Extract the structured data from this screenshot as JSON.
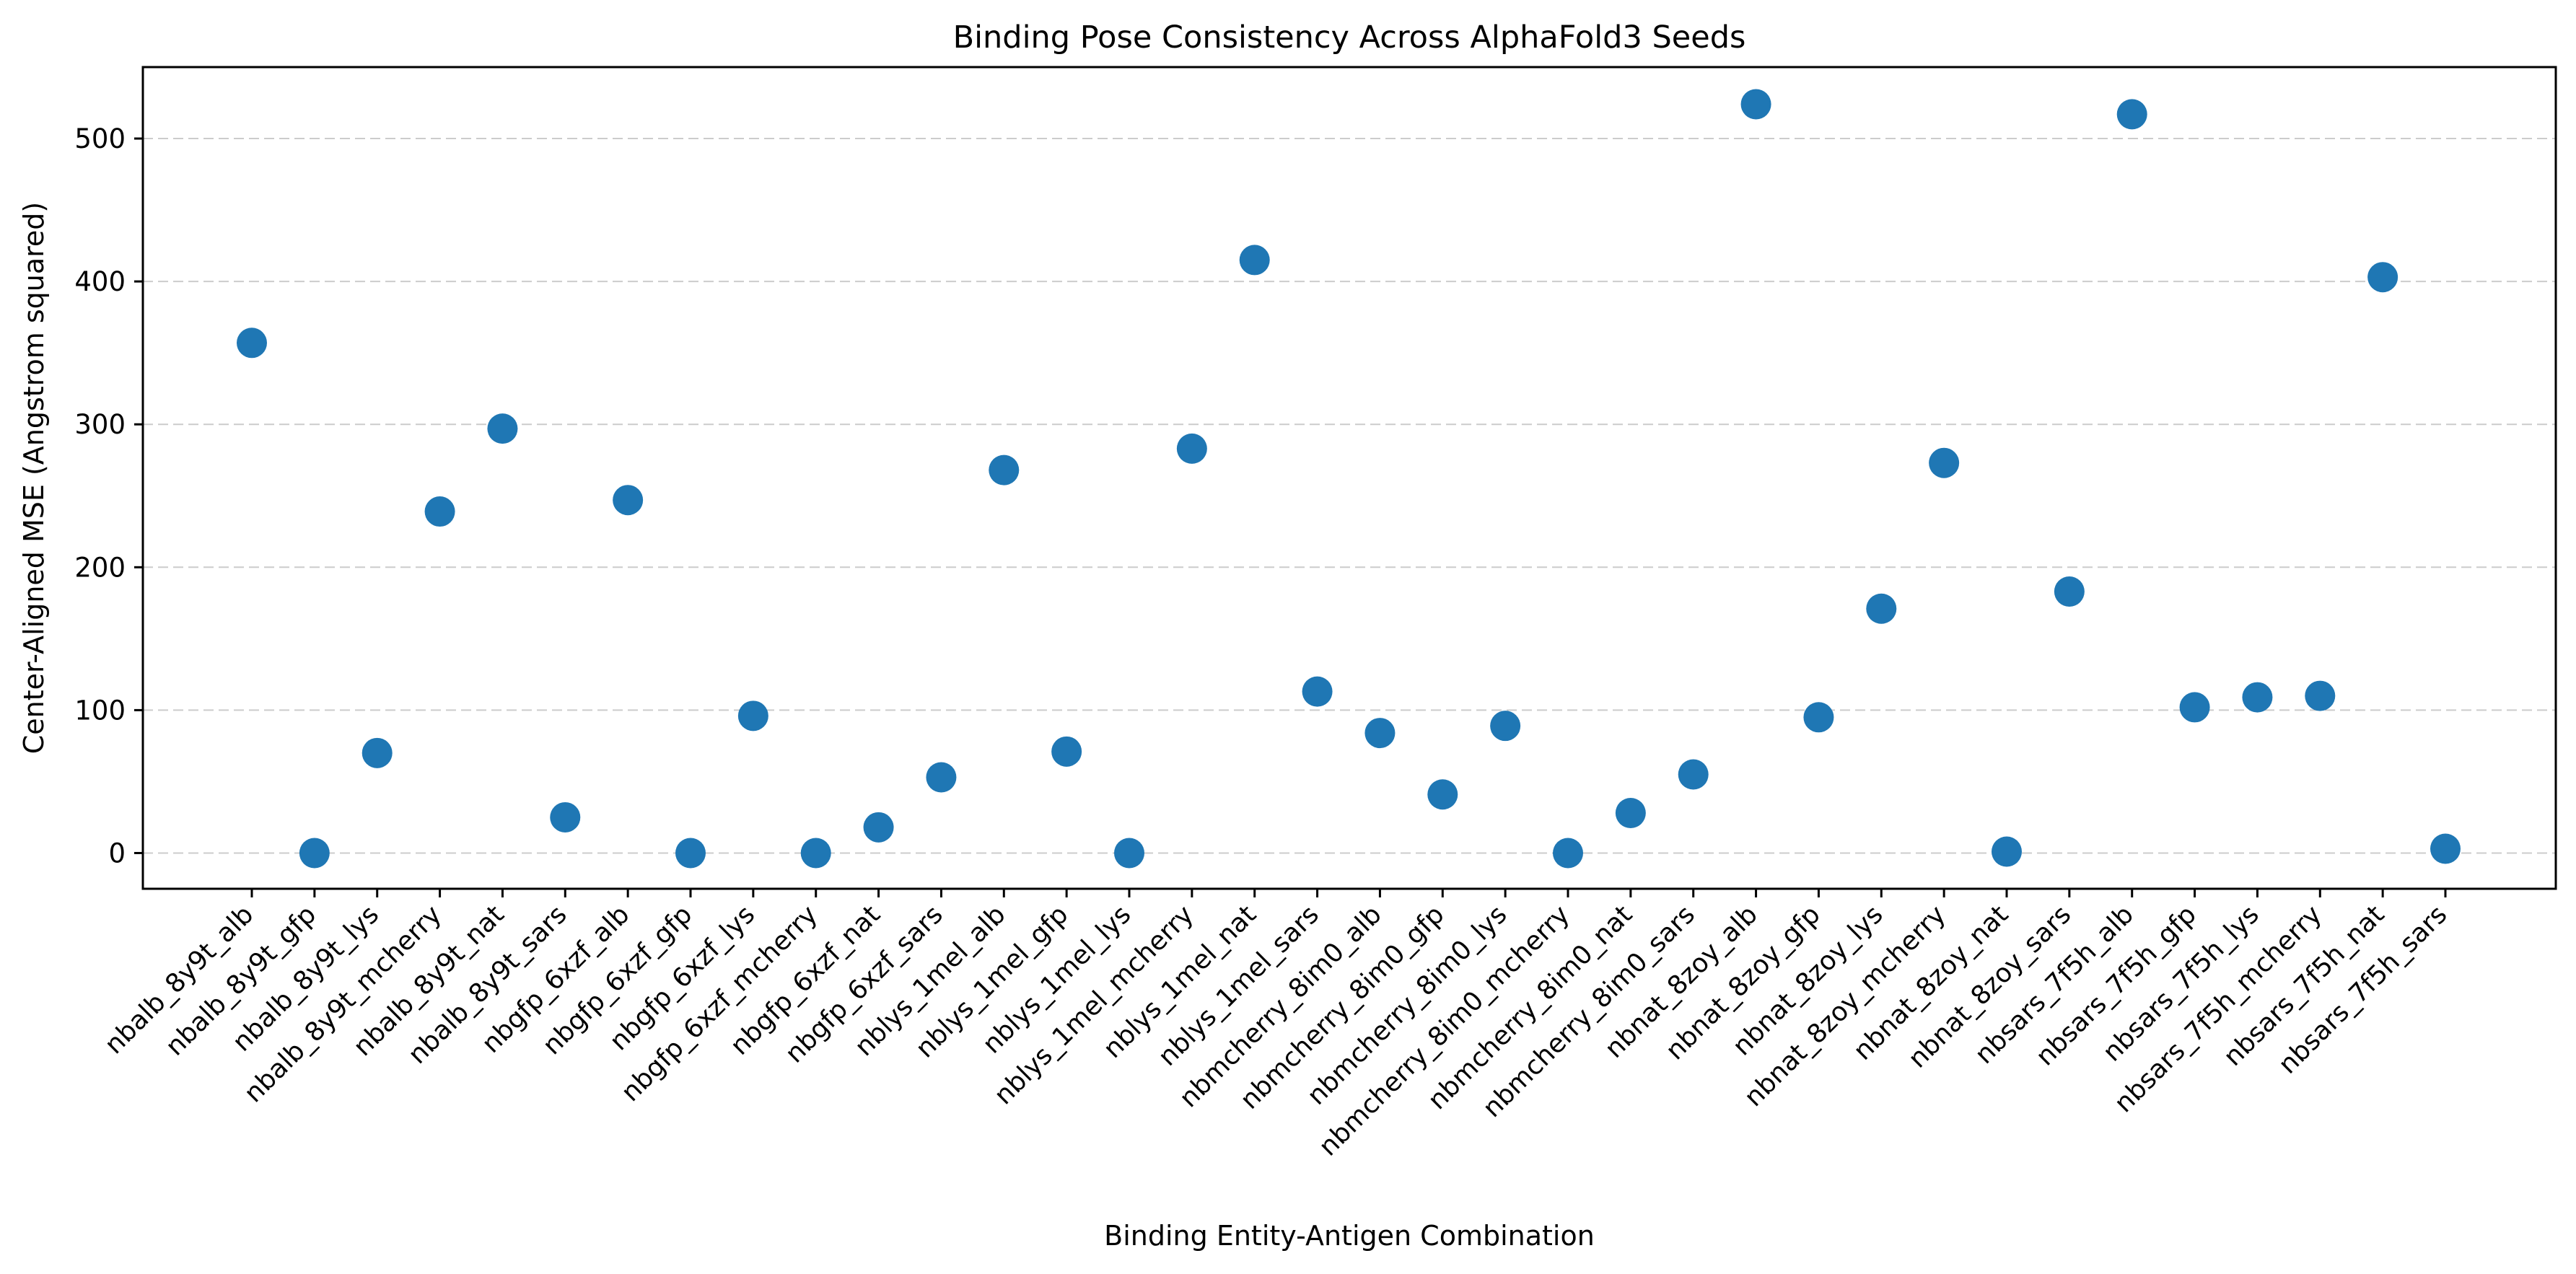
{
  "chart_data": {
    "type": "scatter",
    "title": "Binding Pose Consistency Across AlphaFold3 Seeds",
    "xlabel": "Binding Entity-Antigen Combination",
    "ylabel": "Center-Aligned MSE (Angstrom squared)",
    "ylim": [
      -25,
      550
    ],
    "yticks": [
      0,
      100,
      200,
      300,
      400,
      500
    ],
    "grid": "y-dashed",
    "marker_color": "#1f77b4",
    "categories": [
      "nbalb_8y9t_alb",
      "nbalb_8y9t_gfp",
      "nbalb_8y9t_lys",
      "nbalb_8y9t_mcherry",
      "nbalb_8y9t_nat",
      "nbalb_8y9t_sars",
      "nbgfp_6xzf_alb",
      "nbgfp_6xzf_gfp",
      "nbgfp_6xzf_lys",
      "nbgfp_6xzf_mcherry",
      "nbgfp_6xzf_nat",
      "nbgfp_6xzf_sars",
      "nblys_1mel_alb",
      "nblys_1mel_gfp",
      "nblys_1mel_lys",
      "nblys_1mel_mcherry",
      "nblys_1mel_nat",
      "nblys_1mel_sars",
      "nbmcherry_8im0_alb",
      "nbmcherry_8im0_gfp",
      "nbmcherry_8im0_lys",
      "nbmcherry_8im0_mcherry",
      "nbmcherry_8im0_nat",
      "nbmcherry_8im0_sars",
      "nbnat_8zoy_alb",
      "nbnat_8zoy_gfp",
      "nbnat_8zoy_lys",
      "nbnat_8zoy_mcherry",
      "nbnat_8zoy_nat",
      "nbnat_8zoy_sars",
      "nbsars_7f5h_alb",
      "nbsars_7f5h_gfp",
      "nbsars_7f5h_lys",
      "nbsars_7f5h_mcherry",
      "nbsars_7f5h_nat",
      "nbsars_7f5h_sars"
    ],
    "values": [
      357,
      0,
      70,
      239,
      297,
      25,
      247,
      0,
      96,
      0,
      18,
      53,
      268,
      71,
      0,
      283,
      415,
      113,
      84,
      41,
      89,
      0,
      28,
      55,
      524,
      95,
      171,
      273,
      1,
      183,
      517,
      102,
      109,
      110,
      403,
      3
    ]
  }
}
